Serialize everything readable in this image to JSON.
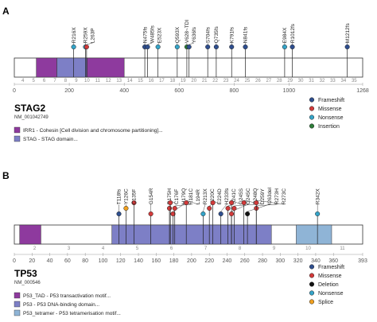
{
  "colors": {
    "frameshift": "#2f4f8f",
    "missense": "#d23a3a",
    "nonsense": "#35a4c8",
    "insertion": "#2e7d3a",
    "deletion": "#111111",
    "splice": "#f0a020",
    "domain_irr1": "#8e3a9e",
    "domain_stag": "#7d7fc6",
    "domain_p53_tad": "#8e3a9e",
    "domain_p53_dna": "#7d7fc6",
    "domain_p53_tetramer": "#8fb4d6"
  },
  "panels": [
    {
      "letter": "A",
      "gene": "STAG2",
      "transcript": "NM_001042749",
      "length": 1268,
      "axis_ticks": [
        0,
        200,
        400,
        600,
        800,
        1000,
        1268
      ],
      "exons": [
        "4",
        "5",
        "6",
        "7",
        "8",
        "9",
        "10",
        "11",
        "12",
        "13",
        "14",
        "15",
        "16",
        "17",
        "18",
        "19",
        "20",
        "21",
        "22",
        "23",
        "24",
        "25",
        "26",
        "27",
        "28",
        "29",
        "30",
        "31",
        "32",
        "33",
        "34",
        "35"
      ],
      "domains": [
        {
          "name": "IRR1",
          "start": 80,
          "end": 155,
          "color_key": "domain_irr1"
        },
        {
          "name": "STAG",
          "start": 155,
          "end": 265,
          "color_key": "domain_stag"
        },
        {
          "name": "IRR1",
          "start": 265,
          "end": 400,
          "color_key": "domain_irr1"
        }
      ],
      "domain_legend": [
        {
          "text": "IRR1 - Cohesin [Cell division and chromosome partitioning]...",
          "color_key": "domain_irr1"
        },
        {
          "text": "STAG - STAG domain...",
          "color_key": "domain_stag"
        }
      ],
      "mutations": [
        {
          "label": "R216X",
          "pos": 216,
          "type": "nonsense"
        },
        {
          "label": "R259X",
          "pos": 259,
          "type": "nonsense"
        },
        {
          "label": "L263P",
          "pos": 263,
          "type": "missense"
        },
        {
          "label": "N475fs",
          "pos": 475,
          "type": "frameshift"
        },
        {
          "label": "W485fs",
          "pos": 485,
          "type": "frameshift"
        },
        {
          "label": "E523X",
          "pos": 523,
          "type": "nonsense"
        },
        {
          "label": "Q593X",
          "pos": 593,
          "type": "nonsense"
        },
        {
          "label": "V628~TDI",
          "pos": 628,
          "type": "insertion"
        },
        {
          "label": "Y636fs",
          "pos": 636,
          "type": "frameshift"
        },
        {
          "label": "S704fs",
          "pos": 704,
          "type": "frameshift"
        },
        {
          "label": "Q735fs",
          "pos": 735,
          "type": "frameshift"
        },
        {
          "label": "K791fs",
          "pos": 791,
          "type": "frameshift"
        },
        {
          "label": "N841fs",
          "pos": 841,
          "type": "frameshift"
        },
        {
          "label": "E984X",
          "pos": 984,
          "type": "nonsense"
        },
        {
          "label": "R1012fs",
          "pos": 1012,
          "type": "frameshift"
        },
        {
          "label": "M1212fs",
          "pos": 1212,
          "type": "frameshift"
        }
      ],
      "legend": [
        {
          "text": "Frameshift",
          "color_key": "frameshift"
        },
        {
          "text": "Missense",
          "color_key": "missense"
        },
        {
          "text": "Nonsense",
          "color_key": "nonsense"
        },
        {
          "text": "Insertion",
          "color_key": "insertion"
        }
      ]
    },
    {
      "letter": "B",
      "gene": "TP53",
      "transcript": "NM_000546",
      "length": 393,
      "axis_ticks": [
        0,
        20,
        40,
        60,
        80,
        100,
        120,
        140,
        160,
        180,
        200,
        220,
        240,
        260,
        280,
        300,
        320,
        340,
        360,
        393
      ],
      "exons": [
        "2",
        "3",
        "4",
        "5",
        "6",
        "7",
        "8",
        "9",
        "10",
        "11"
      ],
      "domains": [
        {
          "name": "P53_TAD",
          "start": 6,
          "end": 30,
          "color_key": "domain_p53_tad"
        },
        {
          "name": "P53",
          "start": 110,
          "end": 290,
          "color_key": "domain_p53_dna"
        },
        {
          "name": "P53_tetramer",
          "start": 318,
          "end": 358,
          "color_key": "domain_p53_tetramer"
        }
      ],
      "domain_legend": [
        {
          "text": "P53_TAD - P53 transactivation motif...",
          "color_key": "domain_p53_tad"
        },
        {
          "text": "P53 - P53 DNA-binding domain...",
          "color_key": "domain_p53_dna"
        },
        {
          "text": "P53_tetramer - P53 tetramerisation motif...",
          "color_key": "domain_p53_tetramer"
        }
      ],
      "mutations": [
        {
          "label": "T118fs",
          "pos": 118,
          "type": "frameshift"
        },
        {
          "label": "Y126C",
          "pos": 126,
          "type": "splice"
        },
        {
          "label": "C135F",
          "pos": 135,
          "type": "missense"
        },
        {
          "label": "G154R",
          "pos": 154,
          "type": "missense"
        },
        {
          "label": "R175H",
          "pos": 175,
          "type": "missense"
        },
        {
          "label": "C176F",
          "pos": 176,
          "type": "missense"
        },
        {
          "label": "H179Q",
          "pos": 179,
          "type": "missense"
        },
        {
          "label": "R181C",
          "pos": 181,
          "type": "missense"
        },
        {
          "label": "L194R",
          "pos": 194,
          "type": "missense"
        },
        {
          "label": "R213X",
          "pos": 213,
          "type": "nonsense"
        },
        {
          "label": "Y220C",
          "pos": 220,
          "type": "missense"
        },
        {
          "label": "E224D",
          "pos": 224,
          "type": "missense"
        },
        {
          "label": "H233fs",
          "pos": 233,
          "type": "frameshift"
        },
        {
          "label": "S241C",
          "pos": 241,
          "type": "missense"
        },
        {
          "label": "G245S",
          "pos": 245,
          "type": "missense"
        },
        {
          "label": "G245C",
          "pos": 245,
          "type": "missense"
        },
        {
          "label": "R248Q",
          "pos": 248,
          "type": "missense"
        },
        {
          "label": "D259Y",
          "pos": 259,
          "type": "missense"
        },
        {
          "label": "I263del",
          "pos": 263,
          "type": "deletion"
        },
        {
          "label": "R273H",
          "pos": 273,
          "type": "missense"
        },
        {
          "label": "R273C",
          "pos": 273,
          "type": "missense"
        },
        {
          "label": "R342X",
          "pos": 342,
          "type": "nonsense"
        }
      ],
      "legend": [
        {
          "text": "Frameshift",
          "color_key": "frameshift"
        },
        {
          "text": "Missense",
          "color_key": "missense"
        },
        {
          "text": "Deletion",
          "color_key": "deletion"
        },
        {
          "text": "Nonsense",
          "color_key": "nonsense"
        },
        {
          "text": "Splice",
          "color_key": "splice"
        }
      ]
    }
  ]
}
